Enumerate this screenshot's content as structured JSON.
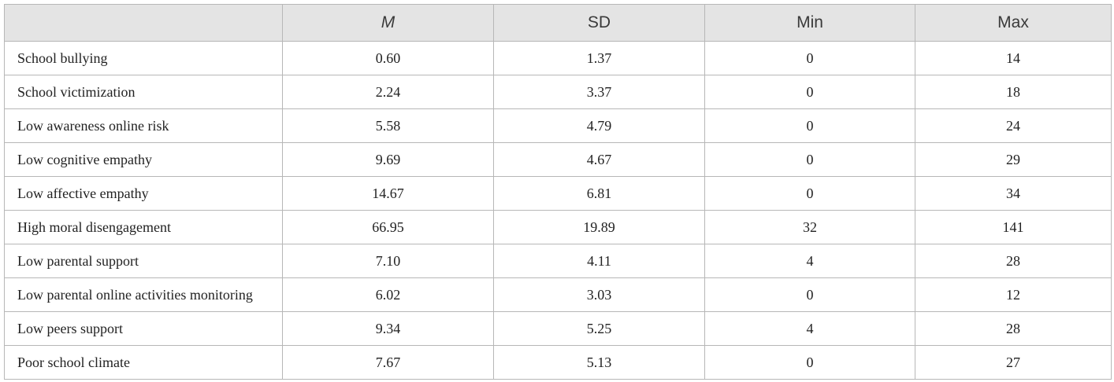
{
  "table": {
    "columns": [
      "M",
      "SD",
      "Min",
      "Max"
    ],
    "rows": [
      {
        "label": "School bullying",
        "cells": [
          "0.60",
          "1.37",
          "0",
          "14"
        ]
      },
      {
        "label": "School victimization",
        "cells": [
          "2.24",
          "3.37",
          "0",
          "18"
        ]
      },
      {
        "label": "Low awareness online risk",
        "cells": [
          "5.58",
          "4.79",
          "0",
          "24"
        ]
      },
      {
        "label": "Low cognitive empathy",
        "cells": [
          "9.69",
          "4.67",
          "0",
          "29"
        ]
      },
      {
        "label": "Low affective empathy",
        "cells": [
          "14.67",
          "6.81",
          "0",
          "34"
        ]
      },
      {
        "label": "High moral disengagement",
        "cells": [
          "66.95",
          "19.89",
          "32",
          "141"
        ]
      },
      {
        "label": "Low parental support",
        "cells": [
          "7.10",
          "4.11",
          "4",
          "28"
        ]
      },
      {
        "label": "Low parental online activities monitoring",
        "cells": [
          "6.02",
          "3.03",
          "0",
          "12"
        ]
      },
      {
        "label": "Low peers support",
        "cells": [
          "9.34",
          "5.25",
          "4",
          "28"
        ]
      },
      {
        "label": "Poor school climate",
        "cells": [
          "7.67",
          "5.13",
          "0",
          "27"
        ]
      }
    ]
  }
}
